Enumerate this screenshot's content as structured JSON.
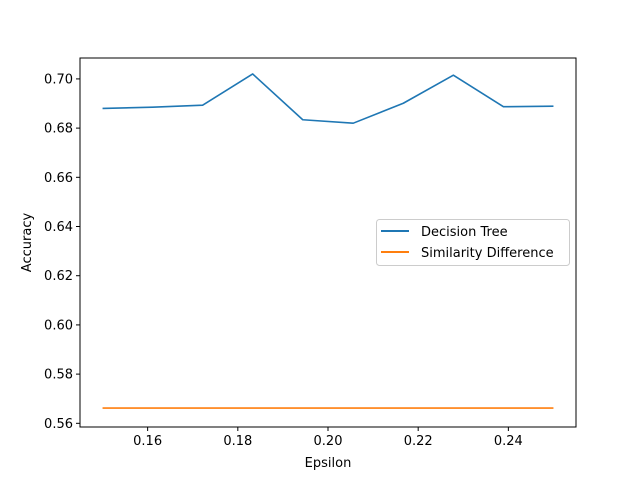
{
  "chart_data": {
    "type": "line",
    "title": "",
    "xlabel": "Epsilon",
    "ylabel": "Accuracy",
    "xlim": [
      0.145,
      0.255
    ],
    "ylim": [
      0.5585,
      0.7085
    ],
    "xticks": [
      0.16,
      0.18,
      0.2,
      0.22,
      0.24
    ],
    "xtick_labels": [
      "0.16",
      "0.18",
      "0.20",
      "0.22",
      "0.24"
    ],
    "yticks": [
      0.56,
      0.58,
      0.6,
      0.62,
      0.64,
      0.66,
      0.68,
      0.7
    ],
    "ytick_labels": [
      "0.56",
      "0.58",
      "0.60",
      "0.62",
      "0.64",
      "0.66",
      "0.68",
      "0.70"
    ],
    "grid": false,
    "legend_position": "center-right",
    "x": [
      0.15,
      0.1611,
      0.1722,
      0.1833,
      0.1944,
      0.2056,
      0.2167,
      0.2278,
      0.2389,
      0.25
    ],
    "series": [
      {
        "name": "Decision Tree",
        "color": "#1f77b4",
        "values": [
          0.688,
          0.6885,
          0.6893,
          0.702,
          0.6834,
          0.682,
          0.6901,
          0.7015,
          0.6887,
          0.6889
        ]
      },
      {
        "name": "Similarity Difference",
        "color": "#ff7f0e",
        "values": [
          0.5662,
          0.5662,
          0.5662,
          0.5662,
          0.5662,
          0.5662,
          0.5662,
          0.5662,
          0.5662,
          0.5662
        ]
      }
    ]
  }
}
